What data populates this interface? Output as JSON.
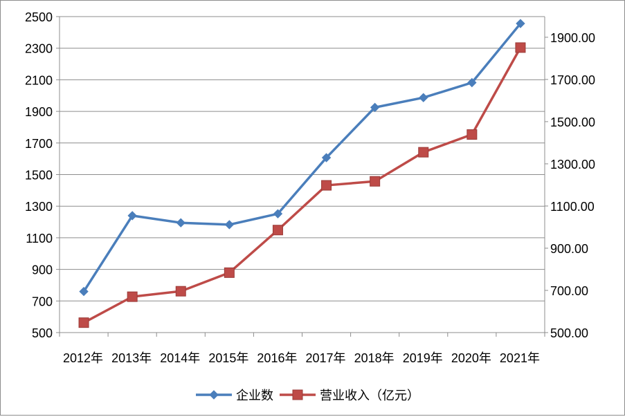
{
  "chart_data": {
    "type": "line",
    "categories": [
      "2012年",
      "2013年",
      "2014年",
      "2015年",
      "2016年",
      "2017年",
      "2018年",
      "2019年",
      "2020年",
      "2021年"
    ],
    "series": [
      {
        "name": "企业数",
        "axis": "left",
        "color": "#4A7EBB",
        "marker": "diamond",
        "values": [
          760,
          1240,
          1195,
          1183,
          1252,
          1607,
          1925,
          1987,
          2082,
          2456
        ]
      },
      {
        "name": "营业收入（亿元）",
        "axis": "right",
        "color": "#BE4B48",
        "marker": "square",
        "values": [
          547,
          670,
          696,
          784,
          986,
          1198,
          1217,
          1355,
          1439,
          1851
        ]
      }
    ],
    "y_left": {
      "min": 500,
      "max": 2500,
      "ticks": [
        "500",
        "700",
        "900",
        "1100",
        "1300",
        "1500",
        "1700",
        "1900",
        "2100",
        "2300",
        "2500"
      ]
    },
    "y_right": {
      "min": 500,
      "max": 1998.0,
      "ticks": [
        "500.00",
        "700.00",
        "900.00",
        "1100.00",
        "1300.00",
        "1500.00",
        "1700.00",
        "1900.00"
      ]
    },
    "grid": true,
    "legend_position": "bottom"
  }
}
